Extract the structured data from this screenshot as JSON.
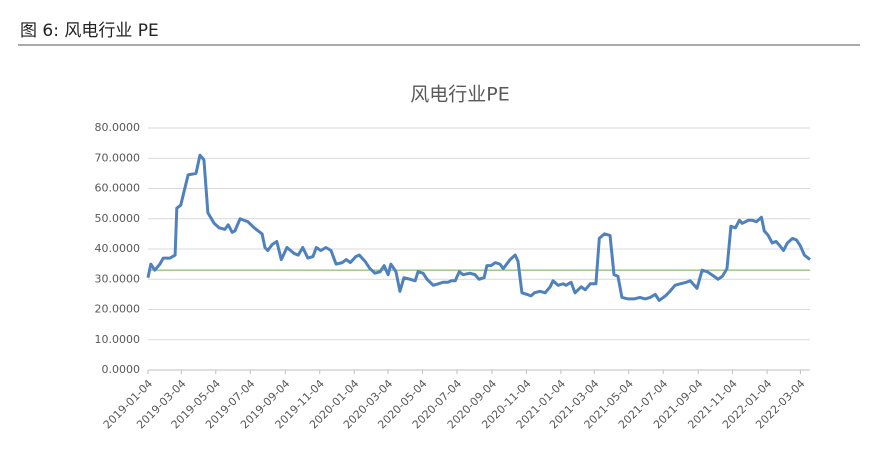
{
  "figure_label": "图 6: 风电行业 PE",
  "chart_data": {
    "type": "line",
    "title": "风电行业PE",
    "x": [
      "2019-01-04",
      "2019-01-09",
      "2019-01-16",
      "2019-01-25",
      "2019-01-31",
      "2019-02-12",
      "2019-02-21",
      "2019-02-24",
      "2019-03-03",
      "2019-03-16",
      "2019-03-30",
      "2019-04-06",
      "2019-04-13",
      "2019-04-20",
      "2019-05-01",
      "2019-05-10",
      "2019-05-20",
      "2019-05-26",
      "2019-06-02",
      "2019-06-07",
      "2019-06-16",
      "2019-06-30",
      "2019-07-11",
      "2019-07-25",
      "2019-07-30",
      "2019-08-04",
      "2019-08-12",
      "2019-08-20",
      "2019-08-28",
      "2019-09-07",
      "2019-09-20",
      "2019-09-27",
      "2019-10-05",
      "2019-10-14",
      "2019-10-23",
      "2019-10-29",
      "2019-11-06",
      "2019-11-15",
      "2019-11-24",
      "2019-12-03",
      "2019-12-14",
      "2019-12-21",
      "2019-12-28",
      "2020-01-07",
      "2020-01-13",
      "2020-01-23",
      "2020-02-01",
      "2020-02-10",
      "2020-02-19",
      "2020-02-26",
      "2020-03-04",
      "2020-03-09",
      "2020-03-18",
      "2020-03-25",
      "2020-04-01",
      "2020-04-12",
      "2020-04-21",
      "2020-04-26",
      "2020-05-05",
      "2020-05-12",
      "2020-05-23",
      "2020-06-01",
      "2020-06-09",
      "2020-06-18",
      "2020-06-24",
      "2020-07-01",
      "2020-07-08",
      "2020-07-15",
      "2020-07-27",
      "2020-08-05",
      "2020-08-12",
      "2020-08-21",
      "2020-08-26",
      "2020-09-02",
      "2020-09-10",
      "2020-09-18",
      "2020-09-24",
      "2020-10-06",
      "2020-10-15",
      "2020-10-20",
      "2020-10-27",
      "2020-11-05",
      "2020-11-12",
      "2020-11-18",
      "2020-11-28",
      "2020-12-07",
      "2020-12-16",
      "2020-12-21",
      "2020-12-30",
      "2021-01-08",
      "2021-01-13",
      "2021-01-22",
      "2021-01-29",
      "2021-02-09",
      "2021-02-16",
      "2021-02-25",
      "2021-03-07",
      "2021-03-13",
      "2021-03-22",
      "2021-04-01",
      "2021-04-08",
      "2021-04-15",
      "2021-04-22",
      "2021-05-03",
      "2021-05-14",
      "2021-05-24",
      "2021-06-02",
      "2021-06-11",
      "2021-06-20",
      "2021-06-27",
      "2021-07-08",
      "2021-07-16",
      "2021-07-25",
      "2021-08-03",
      "2021-08-14",
      "2021-08-21",
      "2021-09-02",
      "2021-09-11",
      "2021-09-20",
      "2021-10-02",
      "2021-10-09",
      "2021-10-17",
      "2021-10-25",
      "2021-11-01",
      "2021-11-09",
      "2021-11-16",
      "2021-11-21",
      "2021-12-02",
      "2021-12-09",
      "2021-12-16",
      "2021-12-25",
      "2021-12-30",
      "2022-01-06",
      "2022-01-13",
      "2022-01-20",
      "2022-01-27",
      "2022-02-02",
      "2022-02-09",
      "2022-02-18",
      "2022-02-25",
      "2022-03-04",
      "2022-03-11",
      "2022-03-21"
    ],
    "series": [
      {
        "color": "#4f81bd",
        "values": [
          30.5,
          35,
          33,
          35,
          37,
          37,
          38,
          53.5,
          54.5,
          64.5,
          65,
          71,
          69.5,
          52,
          48.5,
          47,
          46.5,
          48,
          45.5,
          46,
          50,
          49,
          47,
          45,
          40.5,
          39.5,
          41.5,
          42.5,
          36.5,
          40.5,
          38.5,
          38,
          40.5,
          37,
          37.5,
          40.5,
          39.5,
          40.5,
          39.5,
          35,
          35.5,
          36.5,
          35.5,
          37.5,
          38,
          36,
          33.5,
          32,
          32.5,
          34.5,
          31.5,
          35,
          32.5,
          26,
          30.5,
          30,
          29.5,
          32.5,
          32,
          30,
          28,
          28.5,
          29,
          29,
          29.5,
          29.5,
          32.5,
          31.5,
          32,
          31.5,
          30,
          30.5,
          34.5,
          34.5,
          35.5,
          35,
          33.5,
          36.5,
          38,
          36,
          25.5,
          25,
          24.5,
          25.5,
          26,
          25.5,
          27.5,
          29.5,
          28,
          28.5,
          28,
          29,
          25.5,
          27.5,
          26.5,
          28.5,
          28.5,
          43.5,
          45,
          44.5,
          31.5,
          31,
          24,
          23.5,
          23.5,
          24,
          23.5,
          24,
          25,
          23,
          24.5,
          26,
          28,
          28.5,
          29,
          29.5,
          27,
          33,
          32.5,
          31,
          30,
          31,
          33.5,
          47.5,
          47,
          49.5,
          48.5,
          49.5,
          49.5,
          49,
          50.5,
          46,
          44.5,
          42,
          42.5,
          41,
          39.5,
          42,
          43.5,
          43,
          41,
          38,
          36.5
        ]
      }
    ],
    "reference_line": {
      "value": 33,
      "color": "#70ad47"
    },
    "xlim": [
      "2019-01-04",
      "2022-03-21"
    ],
    "xticks": [
      "2019-01-04",
      "2019-03-04",
      "2019-05-04",
      "2019-07-04",
      "2019-09-04",
      "2019-11-04",
      "2020-01-04",
      "2020-03-04",
      "2020-05-04",
      "2020-07-04",
      "2020-09-04",
      "2020-11-04",
      "2021-01-04",
      "2021-03-04",
      "2021-05-04",
      "2021-07-04",
      "2021-09-04",
      "2021-11-04",
      "2022-01-04",
      "2022-03-04"
    ],
    "ylim": [
      0,
      80
    ],
    "yticks": [
      {
        "value": 0,
        "label": "0.0000"
      },
      {
        "value": 10,
        "label": "10.0000"
      },
      {
        "value": 20,
        "label": "20.0000"
      },
      {
        "value": 30,
        "label": "30.0000"
      },
      {
        "value": 40,
        "label": "40.0000"
      },
      {
        "value": 50,
        "label": "50.0000"
      },
      {
        "value": 60,
        "label": "60.0000"
      },
      {
        "value": 70,
        "label": "70.0000"
      },
      {
        "value": 80,
        "label": "80.0000"
      }
    ],
    "grid": true
  }
}
